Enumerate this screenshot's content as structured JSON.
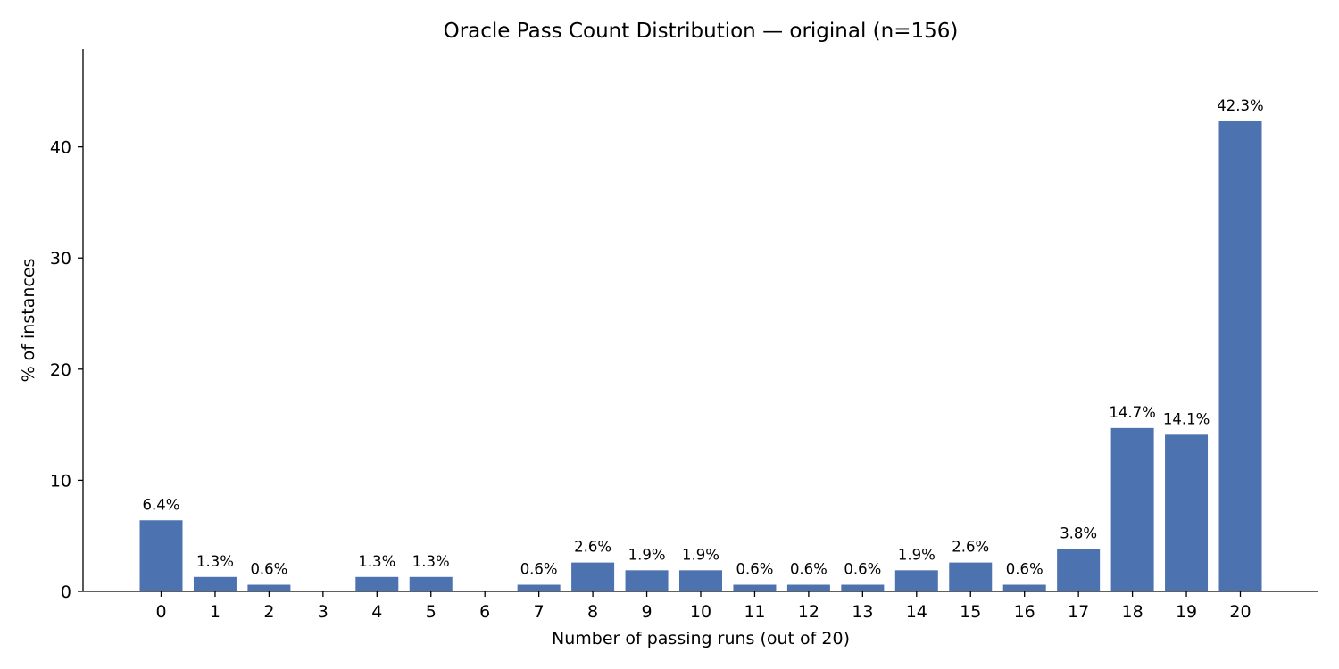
{
  "chart_data": {
    "type": "bar",
    "title": "Oracle Pass Count Distribution — original (n=156)",
    "xlabel": "Number of passing runs (out of 20)",
    "ylabel": "% of instances",
    "categories": [
      "0",
      "1",
      "2",
      "3",
      "4",
      "5",
      "6",
      "7",
      "8",
      "9",
      "10",
      "11",
      "12",
      "13",
      "14",
      "15",
      "16",
      "17",
      "18",
      "19",
      "20"
    ],
    "values": [
      6.4,
      1.3,
      0.6,
      0,
      1.3,
      1.3,
      0,
      0.6,
      2.6,
      1.9,
      1.9,
      0.6,
      0.6,
      0.6,
      1.9,
      2.6,
      0.6,
      3.8,
      14.7,
      14.1,
      42.3
    ],
    "labels": [
      "6.4%",
      "1.3%",
      "0.6%",
      "",
      "1.3%",
      "1.3%",
      "",
      "0.6%",
      "2.6%",
      "1.9%",
      "1.9%",
      "0.6%",
      "0.6%",
      "0.6%",
      "1.9%",
      "2.6%",
      "0.6%",
      "3.8%",
      "14.7%",
      "14.1%",
      "42.3%"
    ],
    "yticks": [
      0,
      10,
      20,
      30,
      40
    ],
    "ylim": [
      0,
      48.8
    ],
    "grid": false,
    "legend": false,
    "bar_color": "#4c72b0"
  }
}
